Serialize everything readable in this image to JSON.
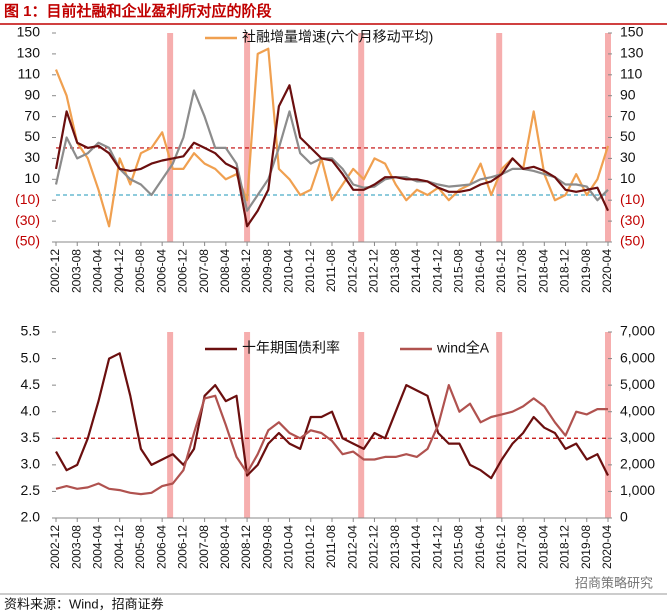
{
  "header": {
    "title": "图 1：目前社融和企业盈利所对应的阶段"
  },
  "footer": {
    "source": "资料来源：Wind，招商证券",
    "watermark": "招商策略研究"
  },
  "chart_data": [
    {
      "type": "line",
      "x": [
        "2002-12",
        "2003-04",
        "2003-08",
        "2003-12",
        "2004-04",
        "2004-08",
        "2004-12",
        "2005-04",
        "2005-08",
        "2005-12",
        "2006-04",
        "2006-08",
        "2006-12",
        "2007-04",
        "2007-08",
        "2007-12",
        "2008-04",
        "2008-08",
        "2008-12",
        "2009-04",
        "2009-08",
        "2009-12",
        "2010-04",
        "2010-08",
        "2010-12",
        "2011-04",
        "2011-08",
        "2011-12",
        "2012-04",
        "2012-08",
        "2012-12",
        "2013-04",
        "2013-08",
        "2013-12",
        "2014-04",
        "2014-08",
        "2014-12",
        "2015-04",
        "2015-08",
        "2015-12",
        "2016-04",
        "2016-08",
        "2016-12",
        "2017-04",
        "2017-08",
        "2017-12",
        "2018-04",
        "2018-08",
        "2018-12",
        "2019-04",
        "2019-08",
        "2019-12",
        "2020-04"
      ],
      "series": [
        {
          "color": "#f0a050",
          "name": "社融增量增速(六个月移动平均)",
          "values": [
            115,
            90,
            45,
            30,
            0,
            -35,
            30,
            5,
            35,
            40,
            55,
            20,
            20,
            35,
            25,
            20,
            10,
            15,
            -10,
            130,
            135,
            20,
            10,
            -5,
            0,
            30,
            -10,
            5,
            20,
            10,
            30,
            25,
            5,
            -10,
            0,
            -5,
            2,
            -10,
            0,
            5,
            25,
            -5,
            20,
            30,
            20,
            75,
            15,
            -10,
            -5,
            15,
            -5,
            10,
            42
          ]
        },
        {
          "color": "#8c8c8c",
          "values": [
            5,
            50,
            30,
            35,
            45,
            40,
            20,
            10,
            5,
            -5,
            10,
            25,
            50,
            95,
            70,
            40,
            40,
            25,
            -20,
            -5,
            10,
            40,
            75,
            35,
            25,
            30,
            30,
            20,
            5,
            2,
            3,
            10,
            12,
            12,
            8,
            8,
            5,
            3,
            4,
            5,
            10,
            12,
            15,
            20,
            20,
            18,
            15,
            12,
            5,
            5,
            3,
            -10,
            0
          ]
        },
        {
          "color": "#6b0f0f",
          "values": [
            20,
            75,
            45,
            40,
            42,
            35,
            20,
            18,
            20,
            25,
            28,
            30,
            32,
            45,
            40,
            35,
            25,
            20,
            -35,
            -20,
            0,
            80,
            100,
            50,
            40,
            30,
            28,
            15,
            0,
            0,
            5,
            12,
            12,
            10,
            10,
            8,
            2,
            -2,
            -2,
            0,
            5,
            8,
            15,
            30,
            20,
            22,
            18,
            12,
            0,
            -2,
            0,
            2,
            -20
          ]
        }
      ],
      "xlim": [
        "2002-12",
        "2020-04"
      ],
      "xticks": [
        "2002-12",
        "2003-08",
        "2004-04",
        "2004-12",
        "2005-08",
        "2006-04",
        "2006-12",
        "2007-08",
        "2008-04",
        "2008-12",
        "2009-08",
        "2010-04",
        "2010-12",
        "2011-08",
        "2012-04",
        "2012-12",
        "2013-08",
        "2014-04",
        "2014-12",
        "2015-08",
        "2016-04",
        "2016-12",
        "2017-08",
        "2018-04",
        "2018-12",
        "2019-08",
        "2020-04"
      ],
      "ylim": [
        -50,
        150
      ],
      "yticks": [
        {
          "value": -50,
          "label": "(50)"
        },
        {
          "value": -30,
          "label": "(30)"
        },
        {
          "value": -10,
          "label": "(10)"
        },
        10,
        30,
        50,
        70,
        90,
        110,
        130,
        150
      ],
      "y2lim": [
        -50,
        150
      ],
      "y2ticks": [
        {
          "value": -50,
          "label": "(50)"
        },
        {
          "value": -30,
          "label": "(30)"
        },
        {
          "value": -10,
          "label": "(10)"
        },
        10,
        30,
        50,
        70,
        90,
        110,
        130,
        150
      ],
      "negative_tick_color": "#c00000",
      "hlines": [
        {
          "value": 40,
          "color": "#c00000"
        },
        {
          "value": -5,
          "color": "#4bacc6"
        }
      ],
      "bands": [
        "2006-07",
        "2008-12",
        "2012-07",
        "2016-11",
        "2020-04"
      ],
      "band_color": "#f4a0a0"
    },
    {
      "type": "line",
      "x": [
        "2002-12",
        "2003-04",
        "2003-08",
        "2003-12",
        "2004-04",
        "2004-08",
        "2004-12",
        "2005-04",
        "2005-08",
        "2005-12",
        "2006-04",
        "2006-08",
        "2006-12",
        "2007-04",
        "2007-08",
        "2007-12",
        "2008-04",
        "2008-08",
        "2008-12",
        "2009-04",
        "2009-08",
        "2009-12",
        "2010-04",
        "2010-08",
        "2010-12",
        "2011-04",
        "2011-08",
        "2011-12",
        "2012-04",
        "2012-08",
        "2012-12",
        "2013-04",
        "2013-08",
        "2013-12",
        "2014-04",
        "2014-08",
        "2014-12",
        "2015-04",
        "2015-08",
        "2015-12",
        "2016-04",
        "2016-08",
        "2016-12",
        "2017-04",
        "2017-08",
        "2017-12",
        "2018-04",
        "2018-08",
        "2018-12",
        "2019-04",
        "2019-08",
        "2019-12",
        "2020-04"
      ],
      "series": [
        {
          "name": "十年期国债利率",
          "color": "#6b0f0f",
          "values": [
            3.25,
            2.9,
            3.0,
            3.5,
            4.2,
            5.0,
            5.1,
            4.3,
            3.3,
            3.0,
            3.1,
            3.2,
            3.0,
            3.3,
            4.3,
            4.5,
            4.2,
            4.3,
            2.8,
            3.0,
            3.4,
            3.6,
            3.4,
            3.3,
            3.9,
            3.9,
            4.0,
            3.5,
            3.4,
            3.3,
            3.6,
            3.5,
            4.0,
            4.5,
            4.4,
            4.3,
            3.6,
            3.4,
            3.4,
            3.0,
            2.9,
            2.75,
            3.1,
            3.4,
            3.6,
            3.9,
            3.7,
            3.6,
            3.3,
            3.4,
            3.1,
            3.2,
            2.8
          ]
        },
        {
          "name": "wind全A",
          "color": "#b0524f",
          "axis": "y2",
          "values": [
            1100,
            1200,
            1100,
            1150,
            1300,
            1100,
            1050,
            950,
            900,
            950,
            1200,
            1300,
            1800,
            3200,
            4500,
            4600,
            3500,
            2300,
            1700,
            2400,
            3300,
            3600,
            3200,
            3000,
            3300,
            3200,
            2900,
            2400,
            2500,
            2200,
            2200,
            2300,
            2300,
            2400,
            2300,
            2600,
            3500,
            5000,
            4000,
            4300,
            3600,
            3800,
            3900,
            4000,
            4200,
            4500,
            4200,
            3600,
            3100,
            4000,
            3900,
            4100,
            4100
          ]
        }
      ],
      "xlim": [
        "2002-12",
        "2020-04"
      ],
      "xticks": [
        "2002-12",
        "2003-08",
        "2004-04",
        "2004-12",
        "2005-08",
        "2006-04",
        "2006-12",
        "2007-08",
        "2008-04",
        "2008-12",
        "2009-08",
        "2010-04",
        "2010-12",
        "2011-08",
        "2012-04",
        "2012-12",
        "2013-08",
        "2014-04",
        "2014-12",
        "2015-08",
        "2016-04",
        "2016-12",
        "2017-08",
        "2018-04",
        "2018-12",
        "2019-08",
        "2020-04"
      ],
      "ylim": [
        2,
        5.5
      ],
      "yticks": [
        {
          "value": 2,
          "label": "2.0"
        },
        2.5,
        {
          "value": 3,
          "label": "3.0"
        },
        3.5,
        {
          "value": 4,
          "label": "4.0"
        },
        4.5,
        {
          "value": 5,
          "label": "5.0"
        },
        5.5
      ],
      "y2lim": [
        0,
        7000
      ],
      "y2ticks": [
        0,
        {
          "value": 1000,
          "label": "1,000"
        },
        {
          "value": 2000,
          "label": "2,000"
        },
        {
          "value": 3000,
          "label": "3,000"
        },
        {
          "value": 4000,
          "label": "4,000"
        },
        {
          "value": 5000,
          "label": "5,000"
        },
        {
          "value": 6000,
          "label": "6,000"
        },
        {
          "value": 7000,
          "label": "7,000"
        }
      ],
      "hlines": [
        {
          "value": 3.5,
          "color": "#c00000"
        }
      ],
      "bands": [
        "2006-07",
        "2008-12",
        "2012-07",
        "2016-11",
        "2020-04"
      ],
      "band_color": "#f4a0a0"
    }
  ]
}
